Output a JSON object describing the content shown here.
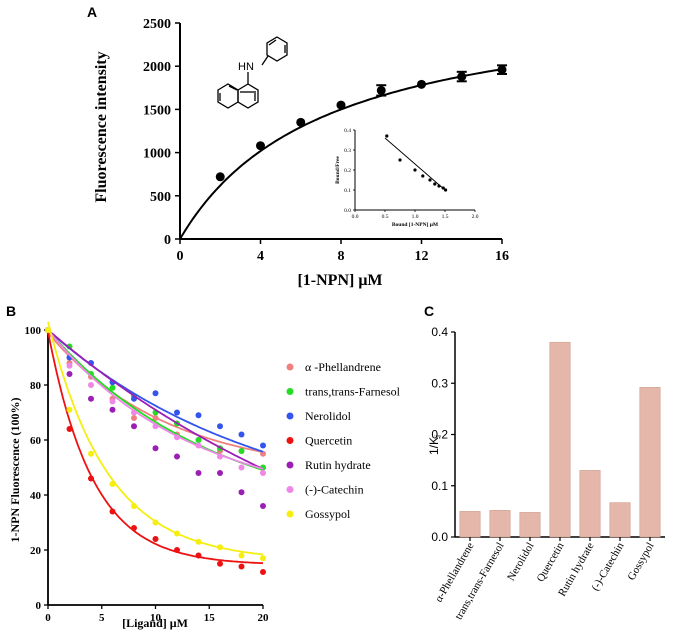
{
  "panel_labels": {
    "a": "A",
    "b": "B",
    "c": "C"
  },
  "colors": {
    "phellandrene": "#f08080",
    "farnesol": "#22dd22",
    "nerolidol": "#3355ee",
    "quercetin": "#ee1111",
    "rutin": "#9b1fb5",
    "catechin": "#ee88e8",
    "gossypol": "#f5ee10",
    "bar": "#e4b7aa",
    "bar_edge": "#cf9e8f"
  },
  "chart_data": [
    {
      "id": "A",
      "type": "scatter",
      "title": "",
      "xlabel": "[1-NPN] μM",
      "ylabel": "Fluorescence intensity",
      "xlim": [
        0,
        16
      ],
      "ylim": [
        0,
        2500
      ],
      "xticks": [
        "0",
        "4",
        "8",
        "12",
        "16"
      ],
      "yticks": [
        "0",
        "500",
        "1000",
        "1500",
        "2000",
        "2500"
      ],
      "x": [
        2,
        4,
        6,
        8,
        10,
        12,
        14,
        16
      ],
      "y": [
        720,
        1080,
        1350,
        1550,
        1720,
        1790,
        1880,
        1960
      ],
      "error": [
        0,
        0,
        0,
        0,
        60,
        0,
        55,
        50
      ],
      "fit": {
        "model": "one-site binding",
        "bmax": 2850,
        "kd": 7.2
      },
      "structure_labels": {
        "nh": "HN"
      },
      "inset": {
        "type": "scatter",
        "xlabel": "Bound [1-NPN] μM",
        "ylabel": "Bound/Free",
        "xlim": [
          0,
          2
        ],
        "ylim": [
          0,
          0.4
        ],
        "xticks": [
          "0.0",
          "0.5",
          "1.0",
          "1.5",
          "2.0"
        ],
        "yticks": [
          "0.0",
          "0.1",
          "0.2",
          "0.3",
          "0.4"
        ],
        "x": [
          0.53,
          0.75,
          1.0,
          1.13,
          1.25,
          1.33,
          1.4,
          1.47,
          1.51
        ],
        "y": [
          0.37,
          0.25,
          0.2,
          0.17,
          0.15,
          0.13,
          0.12,
          0.11,
          0.1
        ],
        "line": [
          [
            0.5,
            0.36
          ],
          [
            1.5,
            0.1
          ]
        ]
      }
    },
    {
      "id": "B",
      "type": "line",
      "title": "",
      "xlabel": "[Ligand] μM",
      "ylabel": "1-NPN Fluorescence (100%)",
      "xlim": [
        0,
        20
      ],
      "ylim": [
        0,
        100
      ],
      "xticks": [
        "0",
        "5",
        "10",
        "15",
        "20"
      ],
      "yticks": [
        "0",
        "20",
        "40",
        "60",
        "80",
        "100"
      ],
      "x": [
        0,
        2,
        4,
        6,
        8,
        10,
        12,
        14,
        16,
        18,
        20
      ],
      "legend_position": "right",
      "series": [
        {
          "name": "α -Phellandrene",
          "key": "phellandrene",
          "y": [
            100,
            88,
            83,
            75,
            68,
            68,
            62,
            60,
            56,
            56,
            55
          ],
          "fit": [
            52,
            0.09,
            47
          ]
        },
        {
          "name": "trans,trans-Farnesol",
          "key": "farnesol",
          "y": [
            100,
            94,
            84,
            79,
            76,
            70,
            66,
            60,
            57,
            56,
            50
          ],
          "fit": [
            70,
            0.065,
            30
          ]
        },
        {
          "name": "Nerolidol",
          "key": "nerolidol",
          "y": [
            100,
            90,
            88,
            81,
            75,
            77,
            70,
            69,
            65,
            62,
            58
          ],
          "fit": [
            70,
            0.05,
            30
          ]
        },
        {
          "name": "Quercetin",
          "key": "quercetin",
          "y": [
            100,
            64,
            46,
            34,
            28,
            24,
            20,
            18,
            15,
            14,
            12
          ],
          "fit": [
            85,
            0.24,
            14.5
          ]
        },
        {
          "name": "Rutin hydrate",
          "key": "rutin",
          "y": [
            100,
            84,
            75,
            71,
            65,
            57,
            54,
            48,
            48,
            41,
            36
          ],
          "fit": [
            112,
            0.03,
            -12
          ]
        },
        {
          "name": "(-)-Catechin",
          "key": "catechin",
          "y": [
            100,
            87,
            80,
            74,
            70,
            65,
            61,
            58,
            54,
            50,
            48
          ],
          "fit": [
            65,
            0.075,
            35
          ]
        },
        {
          "name": "Gossypol",
          "key": "gossypol",
          "y": [
            100,
            71,
            55,
            44,
            36,
            30,
            26,
            23,
            21,
            18,
            17
          ],
          "fit": [
            87,
            0.18,
            16
          ]
        }
      ]
    },
    {
      "id": "C",
      "type": "bar",
      "title": "",
      "xlabel": "",
      "ylabel": "1/K",
      "ylabel_sub": "i",
      "ylim": [
        0,
        0.4
      ],
      "yticks": [
        "0.0",
        "0.1",
        "0.2",
        "0.3",
        "0.4"
      ],
      "categories": [
        "α-Phellandrene",
        "trans,trans-Farnesol",
        "Nerolidol",
        "Quercetin",
        "Rutin hydrate",
        "(-)-Catechin",
        "Gossypol"
      ],
      "values": [
        0.05,
        0.052,
        0.048,
        0.38,
        0.13,
        0.067,
        0.292
      ]
    }
  ]
}
